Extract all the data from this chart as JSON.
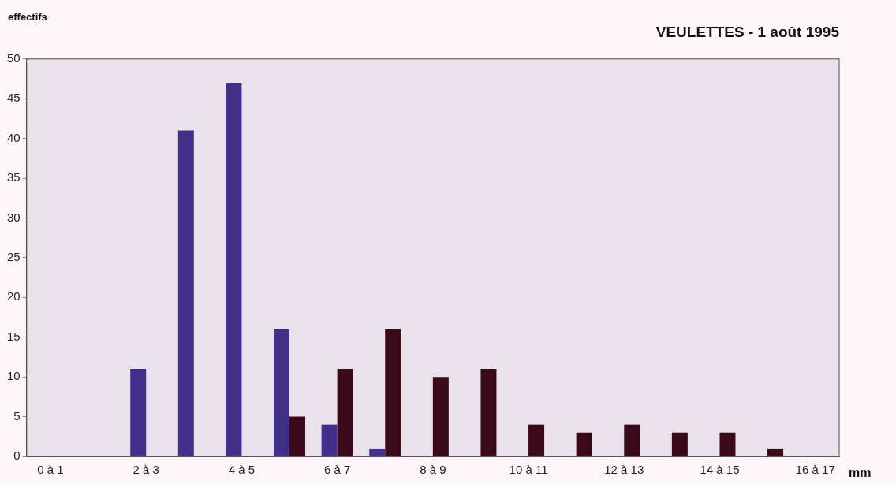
{
  "chart_data": {
    "type": "bar",
    "title": "VEULETTES - 1 août 1995",
    "ylabel": "effectifs",
    "xlabel": "mm",
    "categories": [
      "0 à 1",
      null,
      "2 à 3",
      null,
      "4 à 5",
      null,
      "6 à 7",
      null,
      "8 à 9",
      null,
      "10 à 11",
      null,
      "12 à 13",
      null,
      "14 à 15",
      null,
      "16 à 17"
    ],
    "series": [
      {
        "color": "#40308a",
        "values": [
          0,
          0,
          11,
          41,
          47,
          16,
          4,
          1,
          0,
          0,
          0,
          0,
          0,
          0,
          0,
          0,
          0
        ]
      },
      {
        "color": "#3a0a1a",
        "values": [
          0,
          0,
          0,
          0,
          0,
          5,
          11,
          16,
          10,
          11,
          4,
          3,
          4,
          3,
          3,
          1,
          0
        ]
      }
    ],
    "ylim": [
      0,
      50
    ],
    "yticks": [
      0,
      5,
      10,
      15,
      20,
      25,
      30,
      35,
      40,
      45,
      50
    ],
    "grid": false,
    "legend": false
  }
}
